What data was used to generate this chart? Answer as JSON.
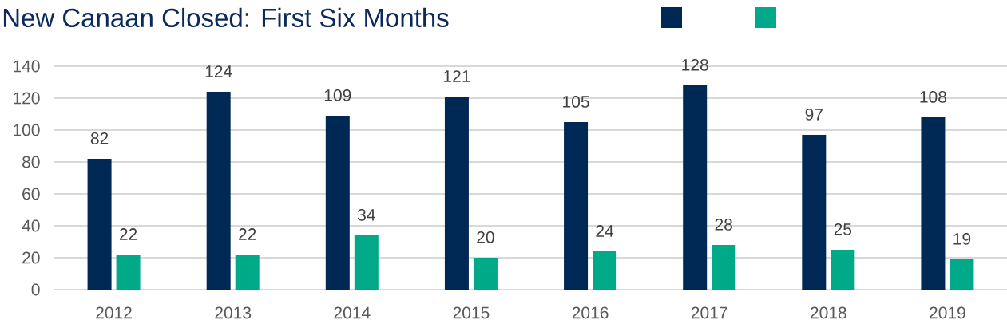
{
  "chart_data": {
    "type": "bar",
    "title": "New Canaan Closed: First Six Months",
    "categories": [
      "2012",
      "2013",
      "2014",
      "2015",
      "2016",
      "2017",
      "2018",
      "2019"
    ],
    "series": [
      {
        "color": "#002855",
        "values": [
          82,
          124,
          109,
          121,
          105,
          128,
          97,
          108
        ]
      },
      {
        "color": "#00a987",
        "values": [
          22,
          22,
          34,
          20,
          24,
          28,
          25,
          19
        ]
      }
    ],
    "ylim": [
      0,
      140
    ],
    "yticks": [
      0,
      20,
      40,
      60,
      80,
      100,
      120,
      140
    ],
    "grid": "y",
    "data_labels": true
  }
}
